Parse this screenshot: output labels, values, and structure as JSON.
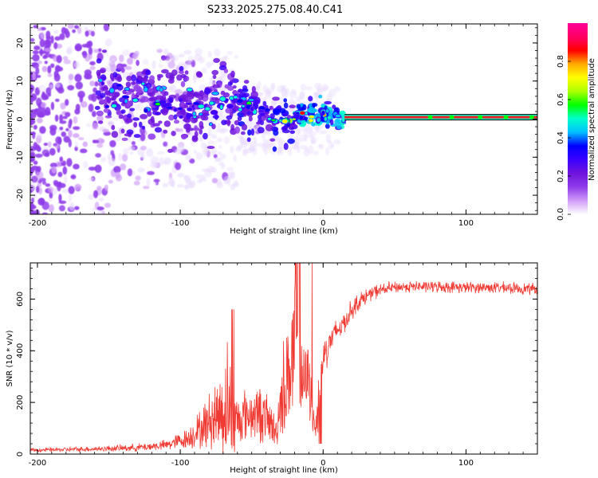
{
  "title": "S233.2025.275.08.40.C41",
  "colors": {
    "waterfall_line": "#e8242a",
    "snr_line": "#ef3b33",
    "cloud_violet": "#7a2ce6",
    "cloud_light": "#d9c6fb"
  },
  "chart_data": [
    {
      "type": "heatmap",
      "name": "spectrogram",
      "xlabel": "Height of straight line (km)",
      "ylabel": "Frequency (Hz)",
      "xlim": [
        -205,
        150
      ],
      "ylim": [
        -25,
        25
      ],
      "x_ticks": [
        -200,
        -100,
        0,
        100
      ],
      "x_tick_labels": [
        "-200",
        "-100",
        "0",
        "100"
      ],
      "y_ticks": [
        -20,
        -10,
        0,
        10,
        20
      ],
      "y_tick_labels": [
        "-20",
        "-10",
        "0",
        "10",
        "20"
      ],
      "colorbar": {
        "label": "Normalized spectral amplitude",
        "range": [
          0,
          1
        ],
        "ticks": [
          0.0,
          0.2,
          0.4,
          0.6,
          0.8
        ],
        "tick_labels": [
          "0.0",
          "0.2",
          "0.4",
          "0.6",
          "0.8"
        ],
        "colormap": [
          "#ffffff",
          "#cf9cf7",
          "#8f3bea",
          "#6f14dd",
          "#3b00ff",
          "#0000ff",
          "#00bfff",
          "#00ffcc",
          "#00ff00",
          "#aaff00",
          "#ffff00",
          "#ffaa00",
          "#ff0000",
          "#ff0066",
          "#ff0099"
        ]
      },
      "trace": {
        "x": [
          -155,
          -145,
          -135,
          -125,
          -115,
          -105,
          -95,
          -85,
          -75,
          -65,
          -55,
          -45,
          -35,
          -25,
          -15,
          -5,
          5,
          15,
          150
        ],
        "y": [
          8,
          5,
          4,
          6,
          5,
          4,
          5,
          3,
          4,
          5,
          4,
          3,
          0,
          0,
          1,
          1,
          1.5,
          0.5,
          0.5
        ]
      },
      "zero_line": {
        "x_start": 15,
        "x_end": 150,
        "frequency": 0.5,
        "amplitude": 0.95
      }
    },
    {
      "type": "line",
      "name": "snr",
      "xlabel": "Height of straight line (km)",
      "ylabel": "SNR (10 * v/v)",
      "xlim": [
        -205,
        150
      ],
      "ylim": [
        0,
        740
      ],
      "x_ticks": [
        -200,
        -100,
        0,
        100
      ],
      "x_tick_labels": [
        "-200",
        "-100",
        "0",
        "100"
      ],
      "y_ticks": [
        0,
        200,
        400,
        600
      ],
      "y_tick_labels": [
        "0",
        "200",
        "400",
        "600"
      ],
      "envelope": {
        "x": [
          -205,
          -160,
          -130,
          -110,
          -95,
          -85,
          -75,
          -68,
          -66,
          -62,
          -55,
          -45,
          -38,
          -33,
          -30,
          -25,
          -20,
          -18,
          -15,
          -10,
          -5,
          -3,
          0,
          5,
          10,
          15,
          20,
          25,
          30,
          35,
          40,
          45,
          50,
          60,
          80,
          100,
          120,
          140,
          150
        ],
        "base": [
          15,
          20,
          25,
          35,
          60,
          100,
          150,
          180,
          200,
          120,
          150,
          160,
          130,
          80,
          200,
          300,
          400,
          420,
          260,
          300,
          100,
          220,
          380,
          440,
          480,
          510,
          560,
          590,
          610,
          625,
          635,
          640,
          645,
          648,
          648,
          645,
          645,
          640,
          640
        ],
        "amp": [
          8,
          10,
          15,
          20,
          40,
          80,
          140,
          220,
          280,
          120,
          100,
          110,
          100,
          60,
          150,
          250,
          300,
          340,
          140,
          150,
          70,
          150,
          80,
          60,
          50,
          45,
          40,
          35,
          30,
          28,
          25,
          25,
          22,
          22,
          22,
          22,
          22,
          22,
          22
        ]
      }
    }
  ]
}
